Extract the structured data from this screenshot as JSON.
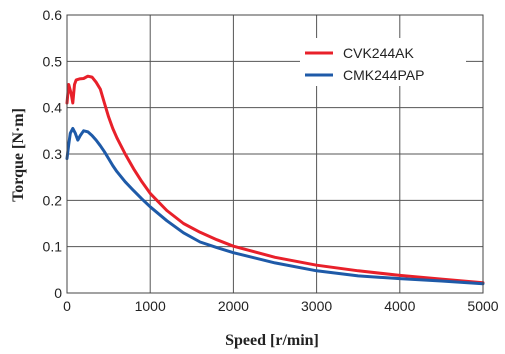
{
  "chart_data": {
    "type": "line",
    "title": "",
    "xlabel": "Speed [r/min]",
    "ylabel": "Torque [N·m]",
    "xlim": [
      0,
      5000
    ],
    "ylim": [
      0,
      0.6
    ],
    "x_ticks": [
      "0",
      "1000",
      "2000",
      "3000",
      "4000",
      "5000"
    ],
    "y_ticks": [
      "0",
      "0.1",
      "0.2",
      "0.3",
      "0.4",
      "0.5",
      "0.6"
    ],
    "grid": true,
    "legend_position": "top-right",
    "series": [
      {
        "name": "CVK244AK",
        "color": "#e8202a",
        "points": [
          [
            0,
            0.41
          ],
          [
            20,
            0.45
          ],
          [
            50,
            0.43
          ],
          [
            70,
            0.41
          ],
          [
            90,
            0.45
          ],
          [
            110,
            0.46
          ],
          [
            150,
            0.462
          ],
          [
            200,
            0.463
          ],
          [
            250,
            0.468
          ],
          [
            300,
            0.466
          ],
          [
            350,
            0.455
          ],
          [
            400,
            0.44
          ],
          [
            450,
            0.41
          ],
          [
            500,
            0.38
          ],
          [
            550,
            0.355
          ],
          [
            600,
            0.335
          ],
          [
            700,
            0.3
          ],
          [
            800,
            0.268
          ],
          [
            900,
            0.24
          ],
          [
            1000,
            0.215
          ],
          [
            1200,
            0.178
          ],
          [
            1400,
            0.15
          ],
          [
            1600,
            0.131
          ],
          [
            1800,
            0.115
          ],
          [
            2000,
            0.101
          ],
          [
            2500,
            0.077
          ],
          [
            3000,
            0.06
          ],
          [
            3500,
            0.048
          ],
          [
            4000,
            0.038
          ],
          [
            4500,
            0.03
          ],
          [
            5000,
            0.022
          ]
        ]
      },
      {
        "name": "CMK244PAP",
        "color": "#1e5aa8",
        "points": [
          [
            0,
            0.29
          ],
          [
            20,
            0.32
          ],
          [
            40,
            0.345
          ],
          [
            70,
            0.355
          ],
          [
            100,
            0.345
          ],
          [
            130,
            0.33
          ],
          [
            160,
            0.34
          ],
          [
            200,
            0.35
          ],
          [
            250,
            0.348
          ],
          [
            300,
            0.34
          ],
          [
            350,
            0.33
          ],
          [
            400,
            0.318
          ],
          [
            450,
            0.305
          ],
          [
            500,
            0.29
          ],
          [
            550,
            0.275
          ],
          [
            600,
            0.262
          ],
          [
            700,
            0.24
          ],
          [
            800,
            0.221
          ],
          [
            900,
            0.203
          ],
          [
            1000,
            0.186
          ],
          [
            1200,
            0.156
          ],
          [
            1400,
            0.13
          ],
          [
            1600,
            0.11
          ],
          [
            1800,
            0.098
          ],
          [
            2000,
            0.087
          ],
          [
            2500,
            0.065
          ],
          [
            3000,
            0.048
          ],
          [
            3500,
            0.037
          ],
          [
            4000,
            0.031
          ],
          [
            4500,
            0.026
          ],
          [
            5000,
            0.02
          ]
        ]
      }
    ]
  }
}
